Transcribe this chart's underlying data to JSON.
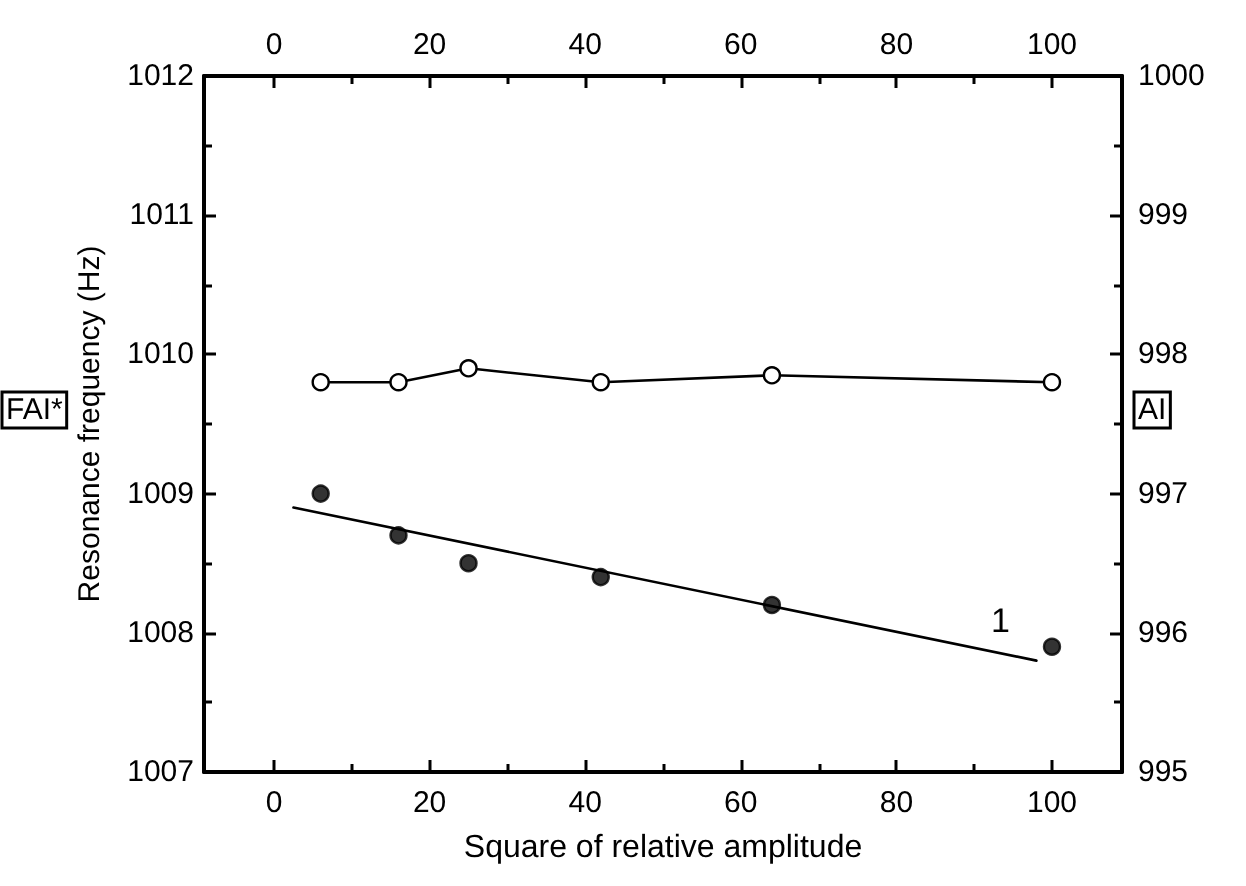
{
  "chart_data": {
    "type": "scatter",
    "xlabel": "Square of relative amplitude",
    "ylabel": "Resonance frequency (Hz)",
    "xlim": [
      -9,
      109
    ],
    "xticks": [
      0,
      20,
      40,
      60,
      80,
      100
    ],
    "x2lim": [
      -9,
      109
    ],
    "x2ticks": [
      0,
      20,
      40,
      60,
      80,
      100
    ],
    "ylim": [
      1007,
      1012
    ],
    "yticks": [
      1007,
      1008,
      1009,
      1010,
      1011,
      1012
    ],
    "y2lim": [
      995,
      1000
    ],
    "y2ticks": [
      995,
      996,
      997,
      998,
      999,
      1000
    ],
    "x": [
      6,
      16,
      25,
      42,
      64,
      100
    ],
    "series": [
      {
        "color": "#000000",
        "marker": "circle",
        "values": [
          1009.0,
          1008.7,
          1008.5,
          1008.4,
          1008.2,
          1007.9
        ]
      },
      {
        "type": "line",
        "axis": "y2",
        "color": "#000000",
        "marker": "circle",
        "line_style": "solid",
        "values": [
          997.8,
          997.8,
          997.9,
          997.8,
          997.85,
          997.8
        ]
      },
      {
        "type": "line",
        "color": "#000000",
        "marker": "none",
        "line_style": "solid",
        "x": [
          2.5,
          98
        ],
        "values": [
          1008.9,
          1007.8
        ]
      }
    ],
    "annotations": [
      "1",
      "FAI*",
      "AI"
    ],
    "grid": false
  }
}
